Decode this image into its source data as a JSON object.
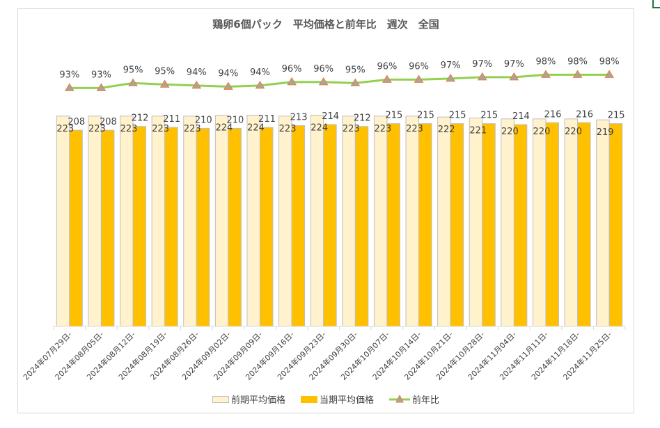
{
  "chart_data": {
    "type": "bar",
    "title": "鶏卵6個パック　平均価格と前年比　週次　全国",
    "categories": [
      "2024年07月29日-",
      "2024年08月05日-",
      "2024年08月12日-",
      "2024年08月19日-",
      "2024年08月26日-",
      "2024年09月02日-",
      "2024年09月09日-",
      "2024年09月16日-",
      "2024年09月23日-",
      "2024年09月30日-",
      "2024年10月07日-",
      "2024年10月14日-",
      "2024年10月21日-",
      "2024年10月28日-",
      "2024年11月04日-",
      "2024年11月11日-",
      "2024年11月18日-",
      "2024年11月25日-"
    ],
    "series": [
      {
        "name": "前期平均価格",
        "kind": "bar",
        "axis": "primary",
        "color": "#FFF2CC",
        "values": [
          223,
          223,
          223,
          223,
          223,
          224,
          224,
          223,
          224,
          223,
          223,
          223,
          222,
          221,
          220,
          220,
          220,
          219
        ]
      },
      {
        "name": "当期平均価格",
        "kind": "bar",
        "axis": "primary",
        "color": "#FFC000",
        "values": [
          208,
          208,
          212,
          211,
          210,
          210,
          211,
          213,
          214,
          212,
          215,
          215,
          215,
          215,
          214,
          216,
          216,
          215
        ]
      },
      {
        "name": "前年比",
        "kind": "line",
        "axis": "secondary",
        "color": "#92D050",
        "marker_color": "#A5A5A5",
        "marker_edge": "#ED7D31",
        "values": [
          0.933,
          0.933,
          0.951,
          0.946,
          0.942,
          0.938,
          0.942,
          0.955,
          0.955,
          0.951,
          0.964,
          0.964,
          0.968,
          0.973,
          0.973,
          0.982,
          0.982,
          0.982
        ],
        "labels": [
          "93%",
          "93%",
          "95%",
          "95%",
          "94%",
          "94%",
          "94%",
          "96%",
          "96%",
          "95%",
          "96%",
          "96%",
          "97%",
          "97%",
          "97%",
          "98%",
          "98%",
          "98%"
        ]
      }
    ],
    "ylim": [
      0,
      272
    ],
    "y2lim": [
      0.05,
      1.0
    ],
    "xlabel": "",
    "ylabel": "",
    "grid": false,
    "legend_position": "bottom"
  },
  "legend": {
    "items": [
      "前期平均価格",
      "当期平均価格",
      "前年比"
    ]
  }
}
